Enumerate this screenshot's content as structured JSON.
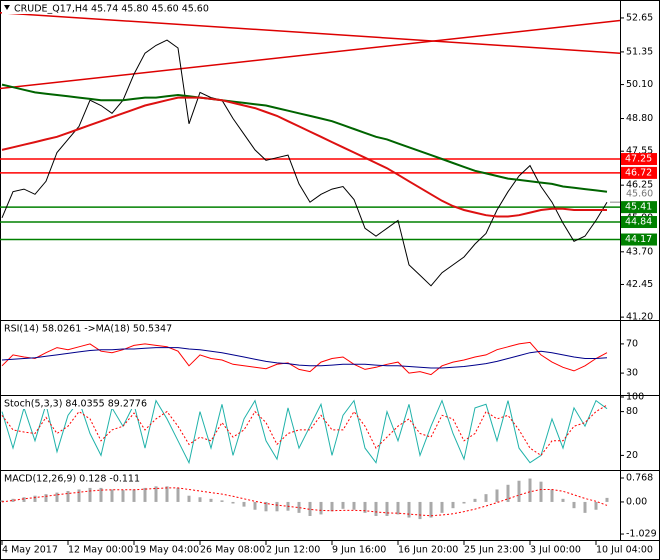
{
  "chart_data": [
    {
      "type": "line",
      "title": "CRUDE_Q17,H4  45.74 45.80 45.60 45.60",
      "categories": [
        "4 May 2017",
        null,
        null,
        null,
        null,
        null,
        "12 May 00:00",
        null,
        null,
        null,
        null,
        null,
        "19 May 04:00",
        null,
        null,
        null,
        null,
        null,
        "26 May 08:00",
        null,
        null,
        null,
        null,
        null,
        "2 Jun 12:00",
        null,
        null,
        null,
        null,
        null,
        "9 Jun 16:00",
        null,
        null,
        null,
        null,
        null,
        "16 Jun 20:00",
        null,
        null,
        null,
        null,
        null,
        "25 Jun 23:00",
        null,
        null,
        null,
        null,
        null,
        "3 Jul 00:00",
        null,
        null,
        null,
        null,
        null,
        "10 Jul 04:00",
        null
      ],
      "series": [
        {
          "color": "#000000",
          "values": [
            45.0,
            46.0,
            46.1,
            45.9,
            46.4,
            47.5,
            48.0,
            48.5,
            49.5,
            49.3,
            49.0,
            49.5,
            50.5,
            51.3,
            51.6,
            51.8,
            51.5,
            48.6,
            49.8,
            49.6,
            49.5,
            48.8,
            48.2,
            47.6,
            47.2,
            47.3,
            47.4,
            46.3,
            45.6,
            45.9,
            46.1,
            46.2,
            45.7,
            44.6,
            44.3,
            44.6,
            44.9,
            43.2,
            42.8,
            42.4,
            42.9,
            43.2,
            43.5,
            44.0,
            44.4,
            45.3,
            46.0,
            46.6,
            47.0,
            46.2,
            45.6,
            44.8,
            44.1,
            44.3,
            44.9,
            45.6
          ]
        },
        {
          "color": "#006400",
          "values": [
            50.1,
            50.0,
            49.9,
            49.8,
            49.75,
            49.7,
            49.65,
            49.6,
            49.55,
            49.5,
            49.5,
            49.5,
            49.55,
            49.6,
            49.6,
            49.65,
            49.7,
            49.65,
            49.6,
            49.55,
            49.5,
            49.45,
            49.4,
            49.35,
            49.3,
            49.2,
            49.1,
            49.0,
            48.9,
            48.8,
            48.7,
            48.55,
            48.4,
            48.25,
            48.1,
            48.0,
            47.85,
            47.7,
            47.55,
            47.4,
            47.25,
            47.1,
            46.95,
            46.8,
            46.7,
            46.6,
            46.5,
            46.45,
            46.4,
            46.35,
            46.3,
            46.2,
            46.15,
            46.1,
            46.05,
            46.0
          ]
        },
        {
          "color": "#dd1111",
          "values": [
            47.6,
            47.7,
            47.8,
            47.9,
            48.0,
            48.1,
            48.25,
            48.4,
            48.55,
            48.7,
            48.85,
            49.0,
            49.15,
            49.3,
            49.4,
            49.5,
            49.6,
            49.6,
            49.6,
            49.55,
            49.5,
            49.4,
            49.3,
            49.2,
            49.05,
            48.9,
            48.7,
            48.5,
            48.3,
            48.1,
            47.9,
            47.7,
            47.5,
            47.3,
            47.1,
            46.9,
            46.65,
            46.4,
            46.15,
            45.9,
            45.65,
            45.45,
            45.3,
            45.2,
            45.1,
            45.05,
            45.05,
            45.1,
            45.2,
            45.3,
            45.35,
            45.35,
            45.3,
            45.3,
            45.3,
            45.3
          ]
        }
      ],
      "trend_lines": [
        {
          "values": [
            49.95,
            52.55
          ],
          "color": "#dd0000"
        },
        {
          "values": [
            52.85,
            51.3
          ],
          "color": "#dd0000"
        }
      ],
      "levels": [
        {
          "value": 47.25,
          "color": "#ff0000"
        },
        {
          "value": 46.72,
          "color": "#ff0000"
        },
        {
          "value": 45.41,
          "color": "#008000"
        },
        {
          "value": 44.84,
          "color": "#008000"
        },
        {
          "value": 44.17,
          "color": "#008000"
        }
      ],
      "last_price": {
        "value": 45.6,
        "label": "45.60"
      },
      "ylim": [
        41.09,
        53.26
      ],
      "yticks": [
        52.65,
        51.35,
        {
          "value": 50.1,
          "label": "50.10"
        },
        {
          "value": 48.8,
          "label": "48.80"
        },
        47.55,
        46.25,
        {
          "value": 45,
          "label": "45.00"
        },
        {
          "value": 43.7,
          "label": "43.70"
        },
        42.45,
        {
          "value": 41.2,
          "label": "41.20"
        }
      ]
    },
    {
      "type": "line",
      "title": "RSI(14) 58.0261 ->MA(18) 50.5347",
      "series": [
        {
          "color": "#ff0000",
          "values": [
            40,
            55,
            52,
            50,
            58,
            65,
            62,
            66,
            70,
            60,
            58,
            62,
            68,
            70,
            68,
            66,
            60,
            40,
            55,
            50,
            48,
            42,
            40,
            38,
            36,
            42,
            44,
            35,
            32,
            45,
            50,
            52,
            42,
            35,
            38,
            42,
            45,
            30,
            32,
            28,
            40,
            45,
            48,
            52,
            55,
            62,
            66,
            70,
            72,
            55,
            45,
            38,
            33,
            40,
            50,
            58
          ]
        },
        {
          "color": "#00008b",
          "values": [
            48,
            49,
            50,
            51,
            53,
            55,
            57,
            59,
            61,
            62,
            62,
            63,
            63,
            64,
            65,
            65,
            65,
            63,
            62,
            60,
            58,
            55,
            52,
            49,
            46,
            44,
            43,
            41,
            40,
            40,
            41,
            42,
            42,
            42,
            41,
            40,
            40,
            39,
            38,
            37,
            37,
            38,
            39,
            41,
            43,
            46,
            50,
            54,
            58,
            60,
            58,
            55,
            52,
            50,
            50,
            51
          ]
        }
      ],
      "ylim": [
        0,
        100
      ],
      "yticks": [
        70,
        30
      ]
    },
    {
      "type": "line",
      "title": "Stoch(5,3,3) 84.0355 89.2776",
      "series": [
        {
          "color": "#20b2aa",
          "values": [
            80,
            30,
            85,
            40,
            90,
            25,
            75,
            95,
            50,
            20,
            85,
            60,
            90,
            30,
            95,
            70,
            40,
            10,
            80,
            30,
            90,
            20,
            70,
            95,
            40,
            15,
            85,
            30,
            60,
            90,
            20,
            75,
            95,
            30,
            10,
            80,
            40,
            90,
            20,
            60,
            95,
            50,
            15,
            85,
            90,
            40,
            95,
            30,
            10,
            20,
            70,
            30,
            85,
            60,
            95,
            84
          ]
        },
        {
          "color": "#ff0000",
          "dashed": true,
          "values": [
            75,
            55,
            52,
            50,
            72,
            50,
            60,
            80,
            70,
            40,
            55,
            60,
            78,
            55,
            70,
            80,
            60,
            35,
            45,
            40,
            65,
            45,
            55,
            80,
            65,
            35,
            50,
            55,
            55,
            75,
            55,
            55,
            80,
            60,
            30,
            45,
            60,
            70,
            50,
            45,
            75,
            70,
            40,
            50,
            80,
            70,
            75,
            55,
            30,
            20,
            40,
            40,
            60,
            65,
            80,
            89
          ]
        }
      ],
      "ylim": [
        0,
        100
      ],
      "yticks": [
        100,
        80,
        20
      ]
    },
    {
      "type": "macd",
      "title": "MACD(12,26,9) 0.128 -0.111",
      "series": [
        {
          "color": "#a9a9a9",
          "values": [
            0.05,
            0.1,
            0.15,
            0.2,
            0.25,
            0.3,
            0.35,
            0.4,
            0.45,
            0.45,
            0.4,
            0.38,
            0.4,
            0.45,
            0.5,
            0.5,
            0.45,
            0.2,
            0.15,
            0.1,
            0.05,
            -0.05,
            -0.15,
            -0.25,
            -0.3,
            -0.3,
            -0.28,
            -0.35,
            -0.45,
            -0.4,
            -0.3,
            -0.22,
            -0.25,
            -0.35,
            -0.45,
            -0.45,
            -0.4,
            -0.5,
            -0.55,
            -0.5,
            -0.35,
            -0.2,
            -0.05,
            0.1,
            0.25,
            0.4,
            0.55,
            0.68,
            0.75,
            0.65,
            0.4,
            0.1,
            -0.2,
            -0.35,
            -0.25,
            0.13
          ]
        },
        {
          "color": "#ff0000",
          "dashed": true,
          "values": [
            0,
            0.05,
            0.1,
            0.14,
            0.18,
            0.23,
            0.27,
            0.31,
            0.35,
            0.38,
            0.39,
            0.39,
            0.39,
            0.41,
            0.43,
            0.45,
            0.45,
            0.4,
            0.35,
            0.3,
            0.25,
            0.18,
            0.1,
            0.02,
            -0.05,
            -0.1,
            -0.14,
            -0.18,
            -0.24,
            -0.27,
            -0.28,
            -0.27,
            -0.27,
            -0.28,
            -0.32,
            -0.35,
            -0.36,
            -0.39,
            -0.42,
            -0.44,
            -0.42,
            -0.38,
            -0.31,
            -0.23,
            -0.13,
            -0.02,
            0.1,
            0.22,
            0.33,
            0.4,
            0.4,
            0.34,
            0.23,
            0.11,
            0.02,
            -0.11
          ]
        }
      ],
      "ylim": [
        -1.22,
        0.96
      ],
      "yticks": [
        0.768,
        {
          "value": 0,
          "label": "0.00"
        },
        -1.029
      ]
    }
  ]
}
